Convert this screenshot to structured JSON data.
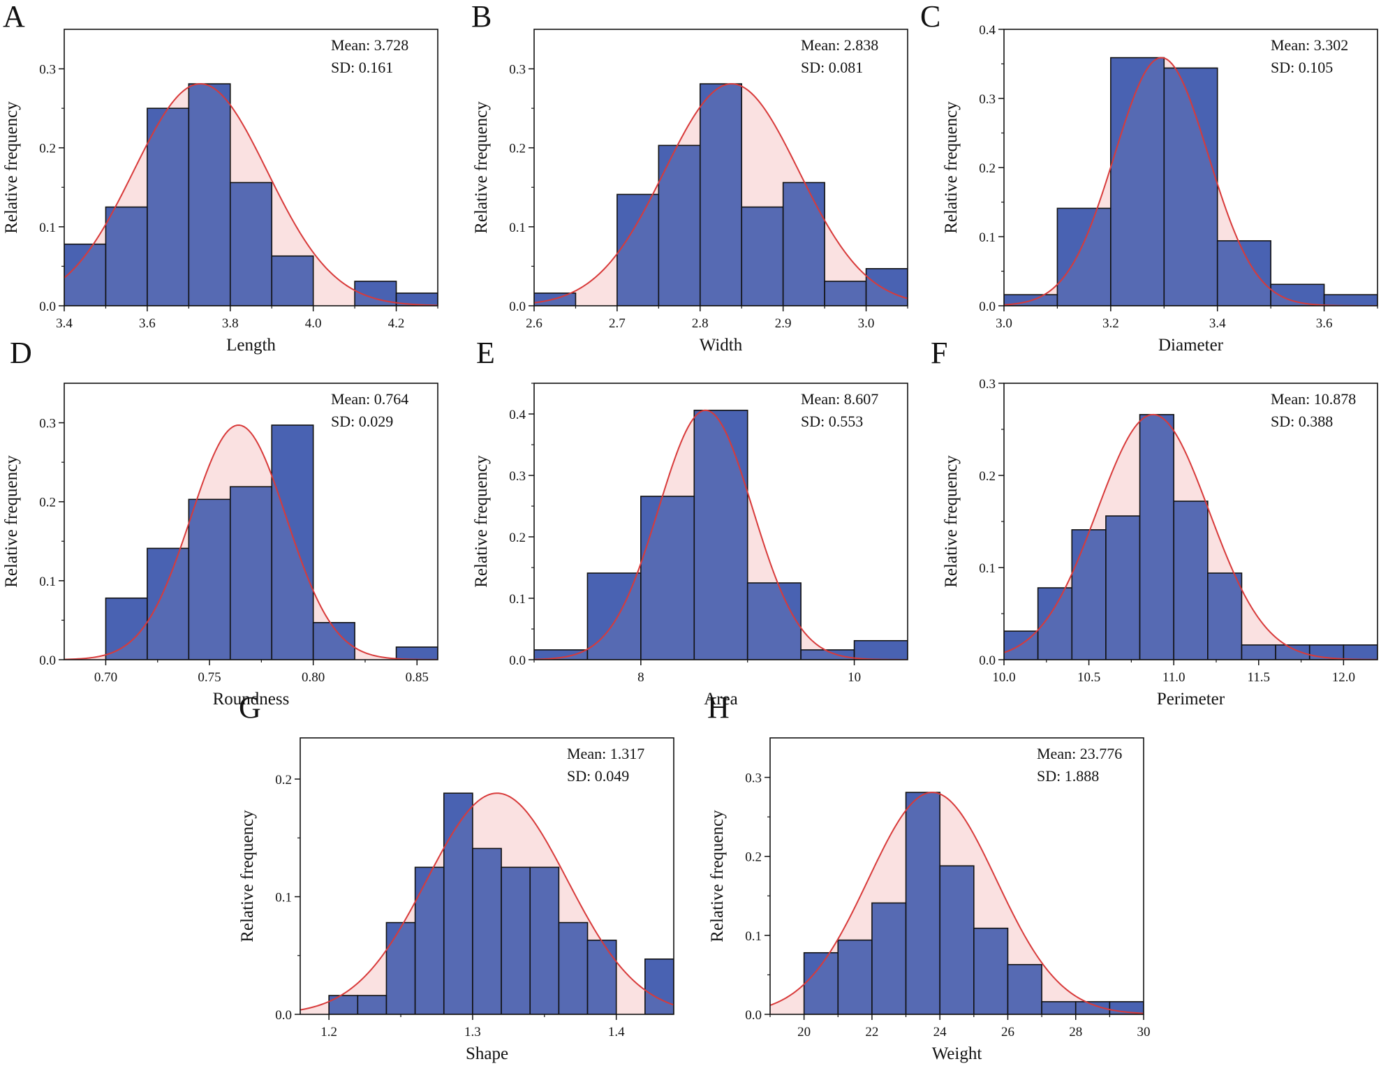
{
  "figure": {
    "ylabel": "Relative frequency",
    "colors": {
      "bar_fill": "#4a62b0",
      "bar_stroke": "#111111",
      "curve": "#d83a3a",
      "curve_fill": "#f9dcdc",
      "axis": "#111111"
    }
  },
  "chart_data": [
    {
      "panel": "A",
      "type": "bar",
      "xlabel": "Length",
      "ylabel": "Relative frequency",
      "xlim": [
        3.4,
        4.3
      ],
      "ylim": [
        0,
        0.35
      ],
      "xticks": [
        "3.4",
        "3.6",
        "3.8",
        "4.0",
        "4.2"
      ],
      "yticks": [
        "0.0",
        "0.1",
        "0.2",
        "0.3"
      ],
      "bin_edges": [
        3.4,
        3.5,
        3.6,
        3.7,
        3.8,
        3.9,
        4.0,
        4.1,
        4.2,
        4.3
      ],
      "values": [
        0.078,
        0.125,
        0.25,
        0.281,
        0.156,
        0.063,
        0.0,
        0.031,
        0.016
      ],
      "mean_label": "Mean: 3.728",
      "sd_label": "SD: 0.161",
      "fit": {
        "peak": 0.281,
        "mean": 3.728,
        "sd": 0.161
      }
    },
    {
      "panel": "B",
      "type": "bar",
      "xlabel": "Width",
      "ylabel": "Relative frequency",
      "xlim": [
        2.6,
        3.05
      ],
      "ylim": [
        0,
        0.35
      ],
      "xticks": [
        "2.6",
        "2.7",
        "2.8",
        "2.9",
        "3.0"
      ],
      "yticks": [
        "0.0",
        "0.1",
        "0.2",
        "0.3"
      ],
      "bin_edges": [
        2.6,
        2.65,
        2.7,
        2.75,
        2.8,
        2.85,
        2.9,
        2.95,
        3.0,
        3.05
      ],
      "values": [
        0.016,
        0.0,
        0.141,
        0.203,
        0.281,
        0.125,
        0.156,
        0.031,
        0.047
      ],
      "mean_label": "Mean: 2.838",
      "sd_label": "SD: 0.081",
      "fit": {
        "peak": 0.281,
        "mean": 2.838,
        "sd": 0.081
      }
    },
    {
      "panel": "C",
      "type": "bar",
      "xlabel": "Diameter",
      "ylabel": "Relative frequency",
      "xlim": [
        3.0,
        3.7
      ],
      "ylim": [
        0,
        0.4
      ],
      "xticks": [
        "3.0",
        "3.2",
        "3.4",
        "3.6"
      ],
      "yticks": [
        "0.0",
        "0.1",
        "0.2",
        "0.3",
        "0.4"
      ],
      "bin_edges": [
        3.0,
        3.1,
        3.2,
        3.3,
        3.4,
        3.5,
        3.6,
        3.7
      ],
      "values": [
        0.016,
        0.141,
        0.359,
        0.344,
        0.094,
        0.031,
        0.016
      ],
      "mean_label": "Mean: 3.302",
      "sd_label": "SD: 0.105",
      "fit": {
        "peak": 0.359,
        "mean": 3.295,
        "sd": 0.088
      }
    },
    {
      "panel": "D",
      "type": "bar",
      "xlabel": "Roundness",
      "ylabel": "Relative frequency",
      "xlim": [
        0.68,
        0.86
      ],
      "ylim": [
        0,
        0.35
      ],
      "xticks": [
        "0.70",
        "0.75",
        "0.80",
        "0.85"
      ],
      "yticks": [
        "0.0",
        "0.1",
        "0.2",
        "0.3"
      ],
      "bin_edges": [
        0.68,
        0.7,
        0.72,
        0.74,
        0.76,
        0.78,
        0.8,
        0.82,
        0.84,
        0.86
      ],
      "values": [
        0.0,
        0.078,
        0.141,
        0.203,
        0.219,
        0.297,
        0.047,
        0.0,
        0.016
      ],
      "mean_label": "Mean: 0.764",
      "sd_label": "SD: 0.029",
      "fit": {
        "peak": 0.297,
        "mean": 0.764,
        "sd": 0.023
      }
    },
    {
      "panel": "E",
      "type": "bar",
      "xlabel": "Area",
      "ylabel": "Relative frequency",
      "xlim": [
        7.0,
        10.5
      ],
      "ylim": [
        0,
        0.45
      ],
      "xticks": [
        "8",
        "10"
      ],
      "yticks": [
        "0.0",
        "0.1",
        "0.2",
        "0.3",
        "0.4"
      ],
      "bin_edges": [
        7.0,
        7.5,
        8.0,
        8.5,
        9.0,
        9.5,
        10.0,
        10.5
      ],
      "values": [
        0.016,
        0.141,
        0.266,
        0.406,
        0.125,
        0.016,
        0.031
      ],
      "mean_label": "Mean: 8.607",
      "sd_label": "SD: 0.553",
      "fit": {
        "peak": 0.406,
        "mean": 8.607,
        "sd": 0.44
      }
    },
    {
      "panel": "F",
      "type": "bar",
      "xlabel": "Perimeter",
      "ylabel": "Relative frequency",
      "xlim": [
        10.0,
        12.2
      ],
      "ylim": [
        0,
        0.3
      ],
      "xticks": [
        "10.0",
        "10.5",
        "11.0",
        "11.5",
        "12.0"
      ],
      "yticks": [
        "0.0",
        "0.1",
        "0.2",
        "0.3"
      ],
      "bin_edges": [
        10.0,
        10.2,
        10.4,
        10.6,
        10.8,
        11.0,
        11.2,
        11.4,
        11.6,
        11.8,
        12.0,
        12.2
      ],
      "values": [
        0.031,
        0.078,
        0.141,
        0.156,
        0.266,
        0.172,
        0.094,
        0.016,
        0.016,
        0.016,
        0.016
      ],
      "mean_label": "Mean: 10.878",
      "sd_label": "SD: 0.388",
      "fit": {
        "peak": 0.266,
        "mean": 10.878,
        "sd": 0.33
      }
    },
    {
      "panel": "G",
      "type": "bar",
      "xlabel": "Shape",
      "ylabel": "Relative frequency",
      "xlim": [
        1.18,
        1.44
      ],
      "ylim": [
        0,
        0.235
      ],
      "xticks": [
        "1.2",
        "1.3",
        "1.4"
      ],
      "yticks": [
        "0.0",
        "0.1",
        "0.2"
      ],
      "bin_edges": [
        1.18,
        1.2,
        1.22,
        1.24,
        1.26,
        1.28,
        1.3,
        1.32,
        1.34,
        1.36,
        1.38,
        1.4,
        1.42,
        1.44
      ],
      "values": [
        0.0,
        0.016,
        0.016,
        0.078,
        0.125,
        0.188,
        0.141,
        0.125,
        0.125,
        0.078,
        0.063,
        0.0,
        0.047
      ],
      "mean_label": "Mean: 1.317",
      "sd_label": "SD: 0.049",
      "fit": {
        "peak": 0.188,
        "mean": 1.317,
        "sd": 0.049
      }
    },
    {
      "panel": "H",
      "type": "bar",
      "xlabel": "Weight",
      "ylabel": "Relative frequency",
      "xlim": [
        19,
        30
      ],
      "ylim": [
        0,
        0.35
      ],
      "xticks": [
        "20",
        "22",
        "24",
        "26",
        "28",
        "30"
      ],
      "yticks": [
        "0.0",
        "0.1",
        "0.2",
        "0.3"
      ],
      "bin_edges": [
        19,
        20,
        21,
        22,
        23,
        24,
        25,
        26,
        27,
        28,
        29,
        30
      ],
      "values": [
        0.0,
        0.078,
        0.094,
        0.141,
        0.281,
        0.188,
        0.109,
        0.063,
        0.016,
        0.016,
        0.016
      ],
      "mean_label": "Mean: 23.776",
      "sd_label": "SD: 1.888",
      "fit": {
        "peak": 0.281,
        "mean": 23.776,
        "sd": 1.888
      }
    }
  ]
}
